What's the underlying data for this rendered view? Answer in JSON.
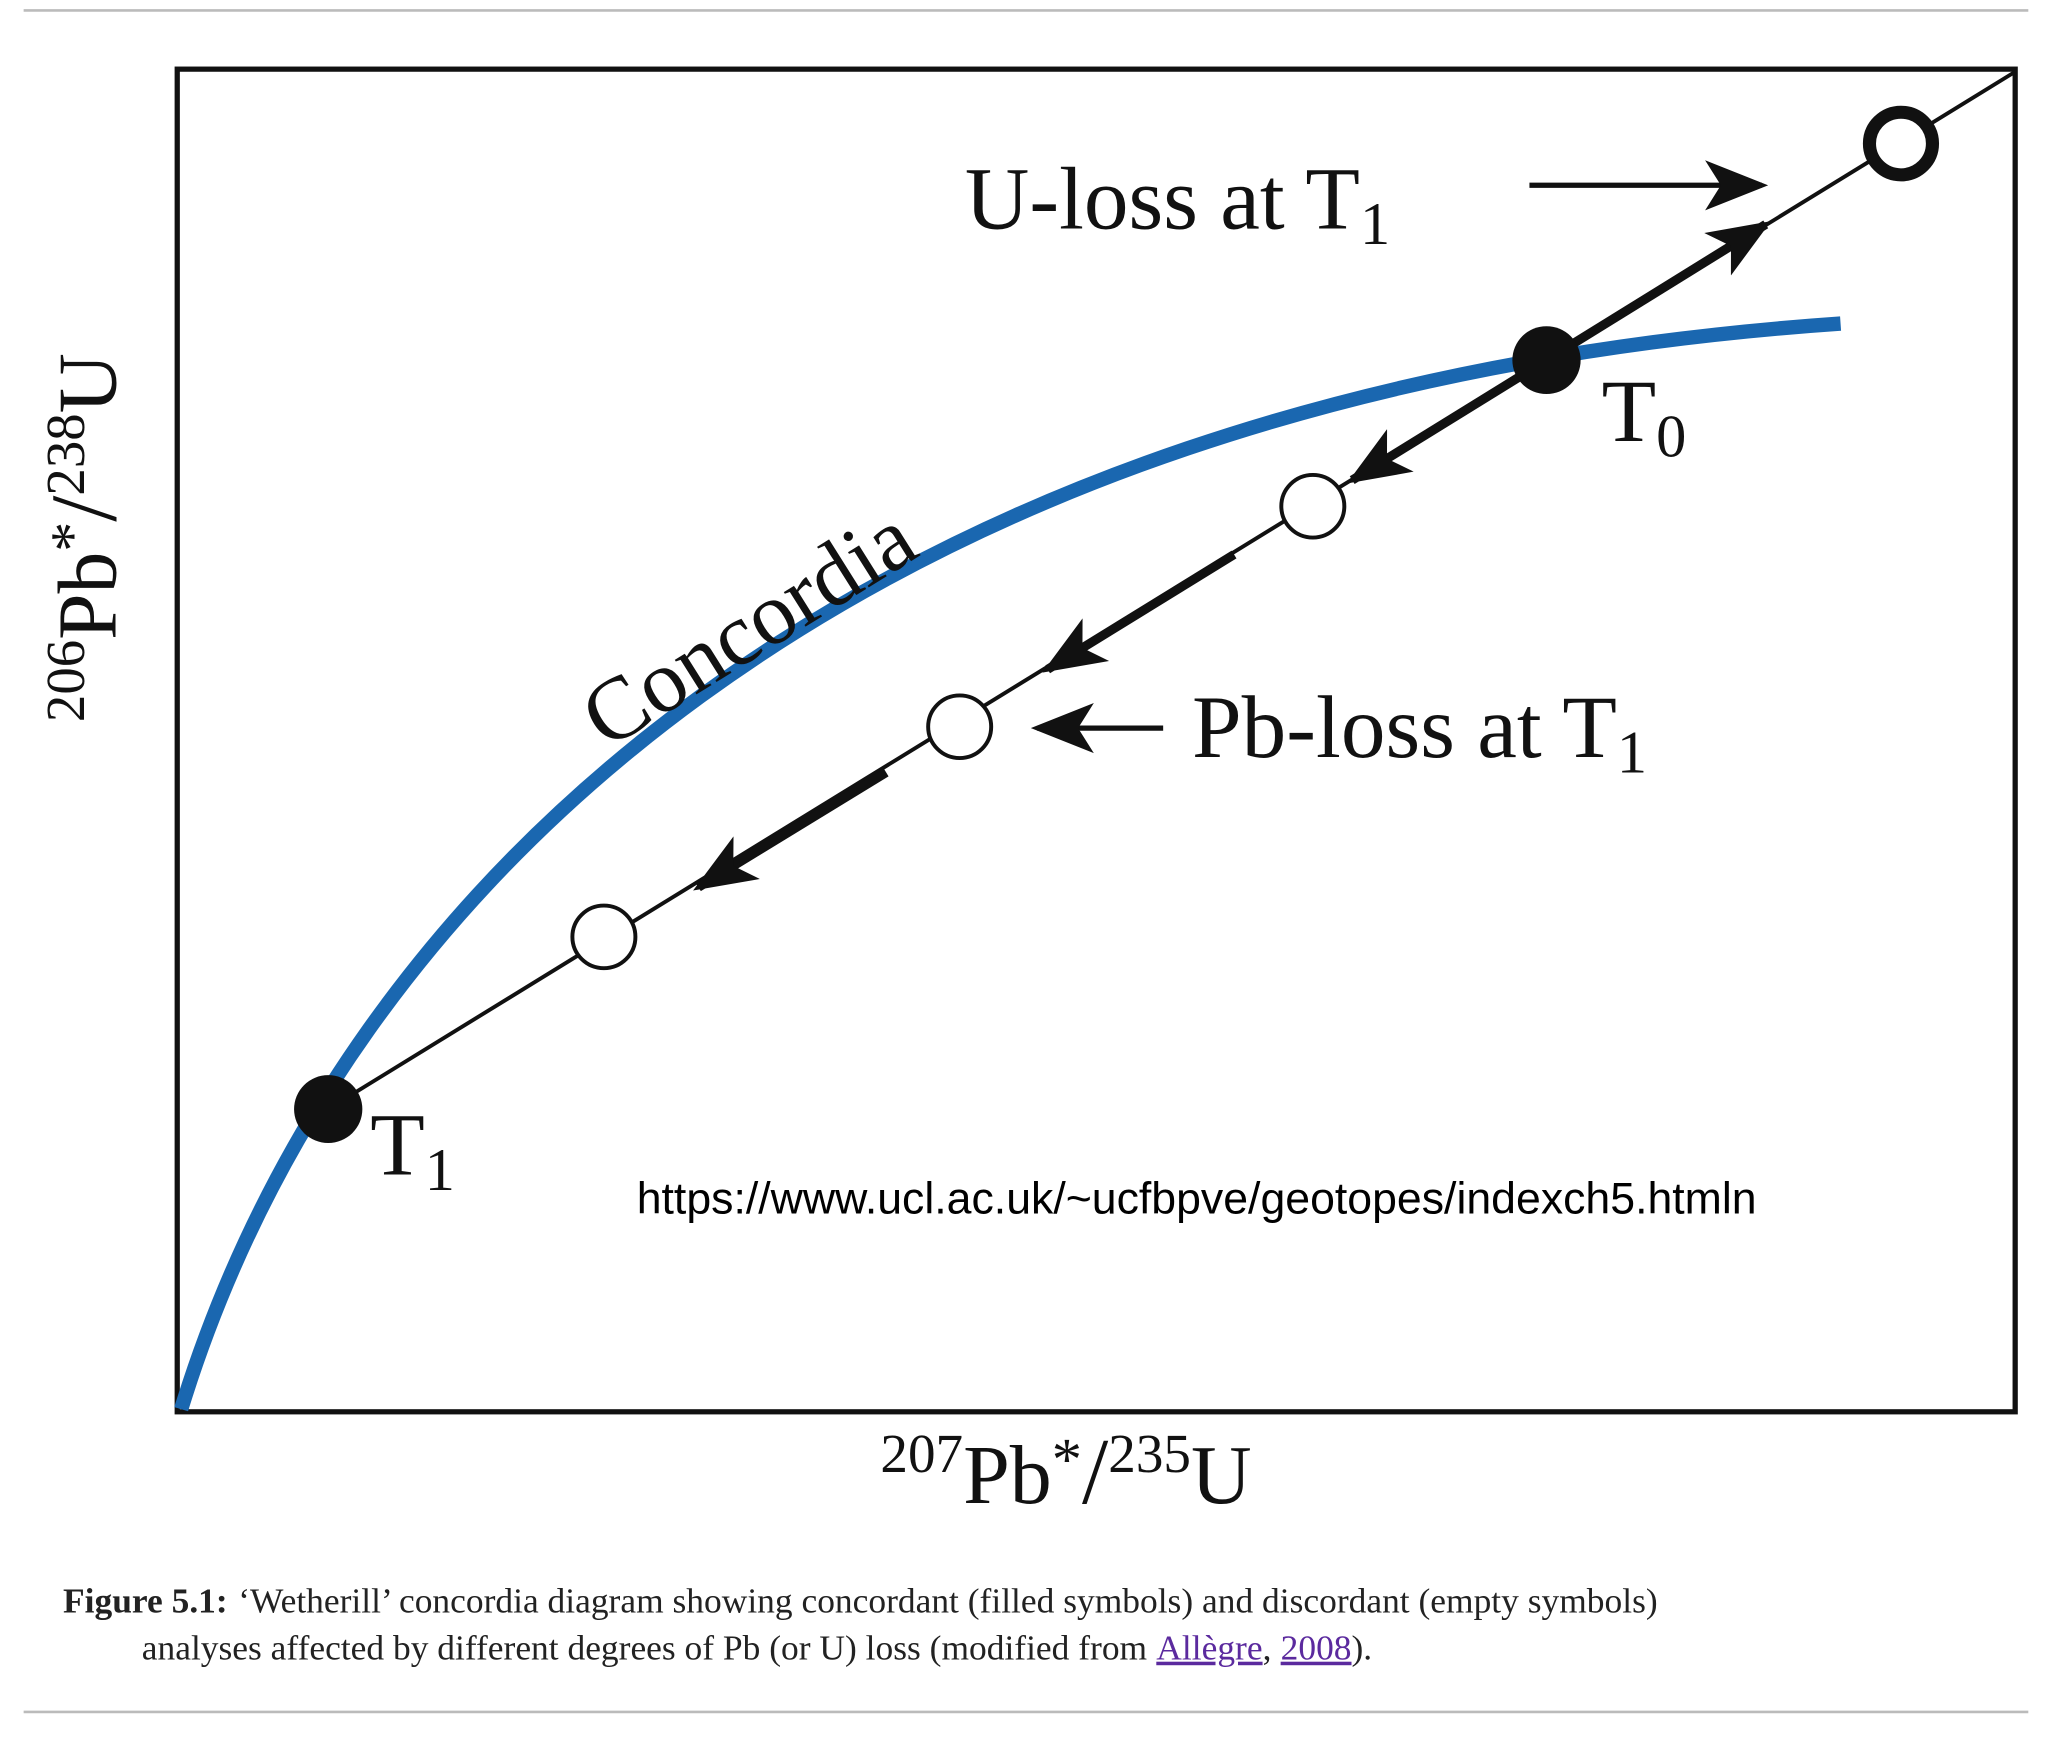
{
  "diagram": {
    "x_label": {
      "mass_a": "207",
      "num": "Pb",
      "star": "*",
      "slash": "/",
      "mass_b": "235",
      "den": "U"
    },
    "y_label": {
      "mass_a": "206",
      "num": "Pb",
      "star": "*",
      "slash": "/",
      "mass_b": "238",
      "den": "U"
    },
    "concordia": "Concordia",
    "u_loss": {
      "text": "U-loss at T",
      "sub": "1"
    },
    "pb_loss": {
      "text": "Pb-loss at T",
      "sub": "1"
    },
    "t0": {
      "text": "T",
      "sub": "0"
    },
    "t1": {
      "text": "T",
      "sub": "1"
    },
    "source_url": "https://www.ucl.ac.uk/~ucfbpve/geotopes/indexch5.htmln"
  },
  "caption": {
    "label": "Figure 5.1:",
    "text_1": "‘Wetherill’ concordia diagram showing concordant (filled symbols) and discordant (empty symbols)",
    "text_2": "analyses affected by different degrees of Pb (or U) loss (modified from",
    "link_author": "Allègre",
    "separator": ",",
    "link_year": "2008",
    "end": ")."
  }
}
